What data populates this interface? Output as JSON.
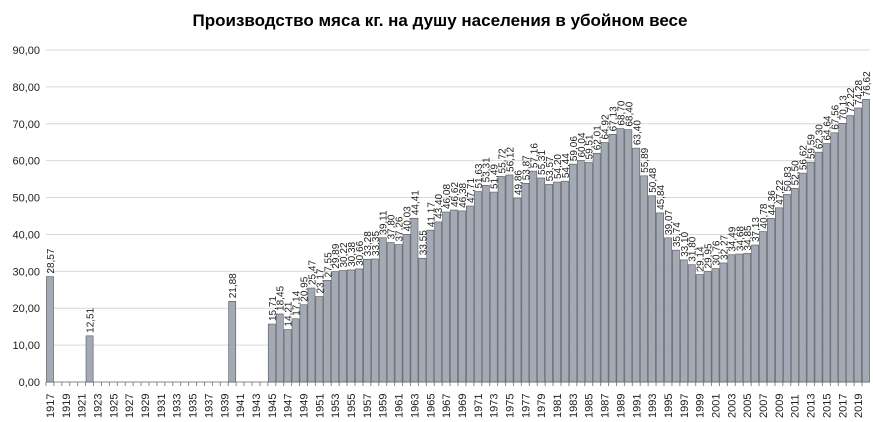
{
  "chart_data": {
    "type": "bar",
    "title": "Производство  мяса кг. на душу населения в убойном весе",
    "categories": [
      "1917",
      null,
      "1919",
      null,
      "1921",
      null,
      "1923",
      null,
      "1925",
      null,
      "1927",
      null,
      "1929",
      null,
      "1931",
      null,
      "1933",
      null,
      "1935",
      null,
      "1937",
      null,
      "1939",
      null,
      "1941",
      null,
      "1943",
      null,
      "1945",
      null,
      "1947",
      null,
      "1949",
      null,
      "1951",
      null,
      "1953",
      null,
      "1955",
      null,
      "1957",
      null,
      "1959",
      null,
      "1961",
      null,
      "1963",
      null,
      "1965",
      null,
      "1967",
      null,
      "1969",
      null,
      "1971",
      null,
      "1973",
      null,
      "1975",
      null,
      "1977",
      null,
      "1979",
      null,
      "1981",
      null,
      "1983",
      null,
      "1985",
      null,
      "1987",
      null,
      "1989",
      null,
      "1991",
      null,
      "1993",
      null,
      "1995",
      null,
      "1997",
      null,
      "1999",
      null,
      "2001",
      null,
      "2003",
      null,
      "2005",
      null,
      "2007",
      null,
      "2009",
      null,
      "2011",
      null,
      "2013",
      null,
      "2015",
      null,
      "2017",
      null,
      "2019",
      null
    ],
    "values": [
      28.57,
      null,
      null,
      null,
      null,
      12.51,
      null,
      null,
      null,
      null,
      null,
      null,
      null,
      null,
      null,
      null,
      null,
      null,
      null,
      null,
      null,
      null,
      null,
      21.88,
      null,
      null,
      null,
      null,
      15.71,
      18.45,
      14.21,
      17.14,
      20.95,
      25.47,
      23.17,
      27.55,
      29.89,
      30.22,
      30.38,
      30.66,
      33.28,
      33.35,
      39.11,
      37.8,
      37.26,
      40.03,
      44.41,
      33.55,
      41.17,
      43.4,
      46.08,
      46.62,
      46.38,
      47.71,
      51.63,
      53.31,
      51.49,
      55.72,
      56.12,
      49.86,
      53.87,
      57.16,
      55.31,
      53.57,
      54.2,
      54.44,
      59.06,
      60.04,
      59.51,
      62.01,
      64.92,
      67.13,
      68.7,
      68.4,
      63.4,
      55.89,
      50.48,
      45.84,
      39.07,
      35.74,
      33.1,
      31.8,
      29.14,
      29.95,
      30.76,
      32.27,
      34.49,
      34.68,
      34.85,
      37.13,
      40.78,
      44.36,
      47.22,
      50.83,
      52.5,
      56.62,
      59.59,
      62.3,
      64.64,
      67.56,
      70.13,
      72.22,
      74.28,
      76.62
    ],
    "value_labels": [
      "28,57",
      null,
      null,
      null,
      null,
      "12,51",
      null,
      null,
      null,
      null,
      null,
      null,
      null,
      null,
      null,
      null,
      null,
      null,
      null,
      null,
      null,
      null,
      null,
      "21,88",
      null,
      null,
      null,
      null,
      "15,71",
      "18,45",
      "14,21",
      "17,14",
      "20,95",
      "25,47",
      "23,17",
      "27,55",
      "29,89",
      "30,22",
      "30,38",
      "30,66",
      "33,28",
      "33,35",
      "39,11",
      "37,80",
      "37,26",
      "40,03",
      "44,41",
      "33,55",
      "41,17",
      "43,40",
      "46,08",
      "46,62",
      "46,38",
      "47,71",
      "51,63",
      "53,31",
      "51,49",
      "55,72",
      "56,12",
      "49,86",
      "53,87",
      "57,16",
      "55,31",
      "53,57",
      "54,20",
      "54,44",
      "59,06",
      "60,04",
      "59,51",
      "62,01",
      "64,92",
      "67,13",
      "68,70",
      "68,40",
      "63,40",
      "55,89",
      "50,48",
      "45,84",
      "39,07",
      "35,74",
      "33,10",
      "31,80",
      "29,14",
      "29,95",
      "30,76",
      "32,27",
      "34,49",
      "34,68",
      "34,85",
      "37,13",
      "40,78",
      "44,36",
      "47,22",
      "50,83",
      "52,50",
      "56,62",
      "59,59",
      "62,30",
      "64,64",
      "67,56",
      "70,13",
      "72,22",
      "74,28",
      "76,62"
    ],
    "color": "#a3aab5",
    "ylim": [
      0,
      90
    ],
    "yticks": [
      {
        "value": 0,
        "label": "0,00"
      },
      {
        "value": 10,
        "label": "10,00"
      },
      {
        "value": 20,
        "label": "20,00"
      },
      {
        "value": 30,
        "label": "30,00"
      },
      {
        "value": 40,
        "label": "40,00"
      },
      {
        "value": 50,
        "label": "50,00"
      },
      {
        "value": 60,
        "label": "60,00"
      },
      {
        "value": 70,
        "label": "70,00"
      },
      {
        "value": 80,
        "label": "80,00"
      },
      {
        "value": 90,
        "label": "90,00"
      }
    ],
    "grid": true
  }
}
